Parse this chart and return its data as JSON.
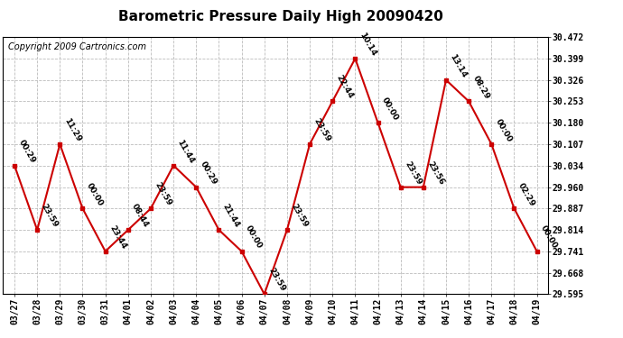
{
  "title": "Barometric Pressure Daily High 20090420",
  "copyright": "Copyright 2009 Cartronics.com",
  "x_labels": [
    "03/27",
    "03/28",
    "03/29",
    "03/30",
    "03/31",
    "04/01",
    "04/02",
    "04/03",
    "04/04",
    "04/05",
    "04/06",
    "04/07",
    "04/08",
    "04/09",
    "04/10",
    "04/11",
    "04/12",
    "04/13",
    "04/14",
    "04/15",
    "04/16",
    "04/17",
    "04/18",
    "04/19"
  ],
  "dates": [
    0,
    1,
    2,
    3,
    4,
    5,
    6,
    7,
    8,
    9,
    10,
    11,
    12,
    13,
    14,
    15,
    16,
    17,
    18,
    19,
    20,
    21,
    22,
    23
  ],
  "values": [
    30.034,
    29.814,
    30.107,
    29.887,
    29.741,
    29.814,
    29.887,
    30.034,
    29.96,
    29.814,
    29.741,
    29.595,
    29.814,
    30.107,
    30.253,
    30.399,
    30.18,
    29.96,
    29.96,
    30.326,
    30.253,
    30.107,
    29.887,
    29.741
  ],
  "annotations": [
    "00:29",
    "23:59",
    "11:29",
    "00:00",
    "23:44",
    "08:44",
    "23:59",
    "11:44",
    "00:29",
    "21:44",
    "00:00",
    "23:59",
    "23:59",
    "23:59",
    "22:44",
    "10:14",
    "00:00",
    "23:59",
    "23:56",
    "13:14",
    "08:29",
    "00:00",
    "02:29",
    "00:00"
  ],
  "ylim_min": 29.595,
  "ylim_max": 30.472,
  "yticks": [
    29.595,
    29.668,
    29.741,
    29.814,
    29.887,
    29.96,
    30.034,
    30.107,
    30.18,
    30.253,
    30.326,
    30.399,
    30.472
  ],
  "line_color": "#cc0000",
  "marker_color": "#cc0000",
  "bg_color": "#ffffff",
  "grid_color": "#bbbbbb",
  "title_fontsize": 11,
  "annotation_fontsize": 6.5,
  "copyright_fontsize": 7,
  "tick_fontsize": 7
}
